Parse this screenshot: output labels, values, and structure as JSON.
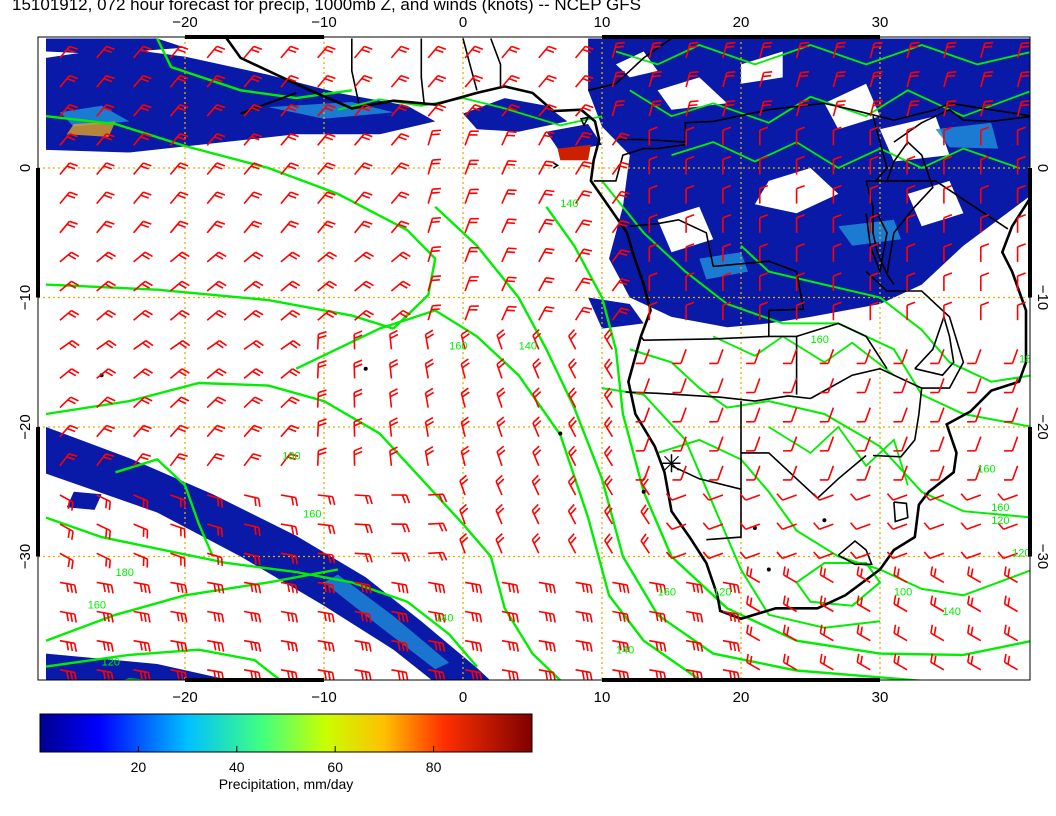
{
  "title": "15101912, 072 hour forecast for precip, 1000mb Z, and winds (knots) -- NCEP GFS",
  "map": {
    "lon_range": [
      -30,
      41
    ],
    "lat_range": [
      -40,
      10
    ],
    "lon_ticks": [
      -20,
      -10,
      0,
      10,
      20,
      30
    ],
    "lat_ticks": [
      0,
      -10,
      -20,
      -30
    ],
    "lon_tick_labels": [
      "−20",
      "−10",
      "0",
      "10",
      "20",
      "30"
    ],
    "lat_tick_labels": [
      "0",
      "−10",
      "−20",
      "−30"
    ],
    "grid": true,
    "colors": {
      "coast": "#000000",
      "contour": "#00ee00",
      "wind_barb": "#ff0000",
      "grid": "#e0b000",
      "precip_light": "#0a1aa8",
      "precip_mid": "#1e8cd8",
      "precip_high": "#cc2000"
    },
    "contour_labels": [
      "160",
      "180",
      "160",
      "140",
      "120",
      "160",
      "180",
      "160",
      "140",
      "120",
      "100",
      "160",
      "160",
      "120",
      "140",
      "180",
      "160",
      "120",
      "140",
      "140"
    ],
    "station_marker": "cross-icon"
  },
  "colorbar": {
    "label": "Precipitation, mm/day",
    "tick_labels": [
      "20",
      "40",
      "60",
      "80"
    ],
    "ticks": [
      20,
      40,
      60,
      80
    ],
    "range": [
      0,
      100
    ]
  }
}
